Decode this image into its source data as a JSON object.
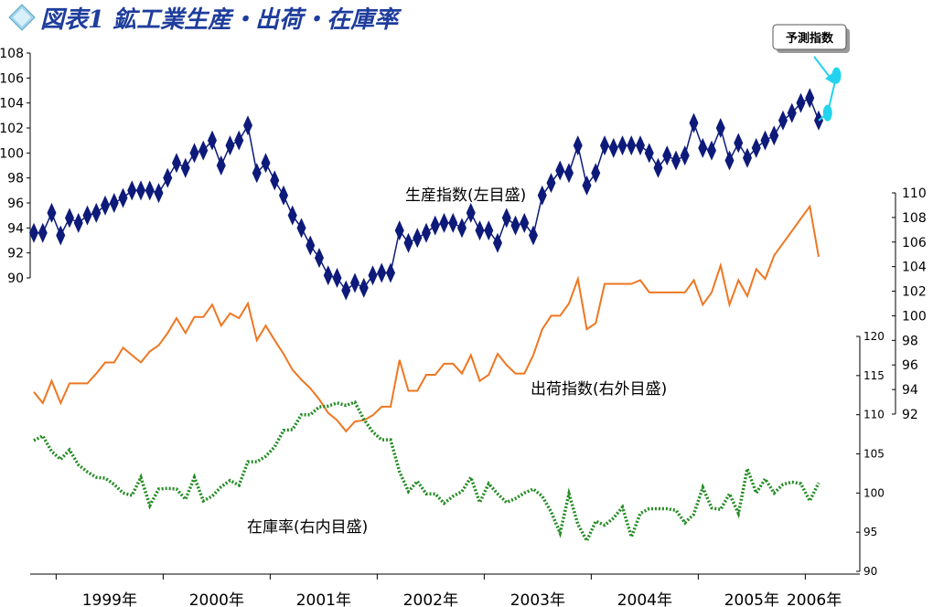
{
  "title": "図表1 鉱工業生産・出荷・在庫率",
  "colors": {
    "production": "#0d1a7a",
    "forecast": "#22d3ee",
    "shipments": "#ee7722",
    "inventory": "#228b22",
    "title": "#1e3d9c"
  },
  "chart_data": {
    "type": "line",
    "years": [
      "1999年",
      "2000年",
      "2001年",
      "2002年",
      "2003年",
      "2004年",
      "2005年",
      "2006年"
    ],
    "months_from": "1998-10",
    "axes": {
      "production_left": {
        "ylim": [
          90,
          108
        ],
        "ticks": [
          90,
          92,
          94,
          96,
          98,
          100,
          102,
          104,
          106,
          108
        ]
      },
      "shipments_right_outer": {
        "ylim": [
          92,
          110
        ],
        "ticks": [
          92,
          94,
          96,
          98,
          100,
          102,
          104,
          106,
          108,
          110
        ]
      },
      "inventory_right_inner": {
        "ylim": [
          90,
          120
        ],
        "ticks": [
          90,
          95,
          100,
          105,
          110,
          115,
          120
        ]
      }
    },
    "series": [
      {
        "name": "生産指数(左目盛)",
        "axis": "production_left",
        "marker": "diamond",
        "values": [
          93.6,
          93.6,
          95.2,
          93.4,
          94.8,
          94.4,
          95.0,
          95.2,
          95.8,
          96.0,
          96.4,
          97.0,
          97.0,
          97.0,
          96.8,
          98.0,
          99.2,
          98.8,
          100.0,
          100.2,
          101.0,
          99.0,
          100.6,
          101.0,
          102.2,
          98.4,
          99.2,
          97.8,
          96.6,
          95.0,
          94.0,
          92.6,
          91.6,
          90.2,
          90.0,
          89.0,
          89.6,
          89.2,
          90.2,
          90.4,
          90.4,
          93.8,
          92.8,
          93.2,
          93.6,
          94.2,
          94.4,
          94.4,
          94.0,
          95.2,
          93.8,
          93.8,
          92.8,
          94.8,
          94.2,
          94.4,
          93.4,
          96.6,
          97.6,
          98.6,
          98.4,
          100.6,
          97.4,
          98.4,
          100.6,
          100.4,
          100.6,
          100.6,
          100.6,
          100.0,
          98.8,
          99.8,
          99.4,
          99.8,
          102.4,
          100.4,
          100.2,
          102.0,
          99.4,
          100.8,
          99.6,
          100.4,
          101.0,
          101.4,
          102.6,
          103.2,
          104.0,
          104.4,
          102.6
        ]
      },
      {
        "name": "予測指数",
        "axis": "production_left",
        "marker": "circle",
        "values": {
          "start_index": 88,
          "data": [
            102.6,
            103.2,
            106.2
          ]
        }
      },
      {
        "name": "出荷指数(右外目盛)",
        "axis": "shipments_right_outer",
        "values": [
          93.8,
          92.9,
          94.7,
          92.9,
          94.5,
          94.5,
          94.5,
          95.3,
          96.2,
          96.2,
          97.4,
          96.8,
          96.2,
          97.1,
          97.6,
          98.6,
          99.8,
          98.6,
          99.9,
          99.9,
          100.9,
          99.2,
          100.2,
          99.8,
          101.0,
          98.0,
          99.2,
          98.0,
          96.9,
          95.6,
          94.8,
          94.1,
          93.2,
          92.1,
          91.5,
          90.6,
          91.4,
          91.5,
          91.9,
          92.6,
          92.6,
          96.4,
          93.9,
          93.9,
          95.2,
          95.2,
          96.1,
          96.1,
          95.3,
          96.8,
          94.7,
          95.2,
          96.9,
          96.0,
          95.3,
          95.3,
          96.8,
          98.9,
          100.0,
          100.0,
          101.0,
          103.0,
          98.9,
          99.4,
          102.6,
          102.6,
          102.6,
          102.6,
          102.9,
          101.9,
          101.9,
          101.9,
          101.9,
          101.9,
          102.9,
          100.9,
          101.9,
          104.1,
          100.9,
          102.9,
          101.6,
          103.8,
          103.0,
          104.9,
          105.9,
          106.9,
          107.9,
          108.9,
          104.8
        ]
      },
      {
        "name": "在庫率(右内目盛)",
        "axis": "inventory_right_inner",
        "style": "dotted",
        "values": [
          106.7,
          107.3,
          105.3,
          104.3,
          105.5,
          103.6,
          102.7,
          102.0,
          101.9,
          101.1,
          100.0,
          99.7,
          102.0,
          98.4,
          100.5,
          100.6,
          100.5,
          99.2,
          102.0,
          99.0,
          99.6,
          100.8,
          101.6,
          101.0,
          104.0,
          104.0,
          104.7,
          105.9,
          108.0,
          108.1,
          110.0,
          110.0,
          111.0,
          111.1,
          111.5,
          111.2,
          111.6,
          109.4,
          107.8,
          106.8,
          106.8,
          102.7,
          100.2,
          101.5,
          99.9,
          99.9,
          98.7,
          99.6,
          100.2,
          102.0,
          98.8,
          101.2,
          99.9,
          98.8,
          99.3,
          100.0,
          100.5,
          99.6,
          97.6,
          94.9,
          99.9,
          96.0,
          93.9,
          96.4,
          95.9,
          96.8,
          98.2,
          94.4,
          97.4,
          98.0,
          98.0,
          98.0,
          97.8,
          96.2,
          97.3,
          100.7,
          98.1,
          97.9,
          99.9,
          97.4,
          103.1,
          100.0,
          101.8,
          100.0,
          101.1,
          101.4,
          101.2,
          99.0,
          101.3
        ]
      }
    ],
    "series_labels": [
      "生産指数(左目盛)",
      "出荷指数(右外目盛)",
      "在庫率(右内目盛)"
    ],
    "callout": "予測指数",
    "grid": false
  }
}
